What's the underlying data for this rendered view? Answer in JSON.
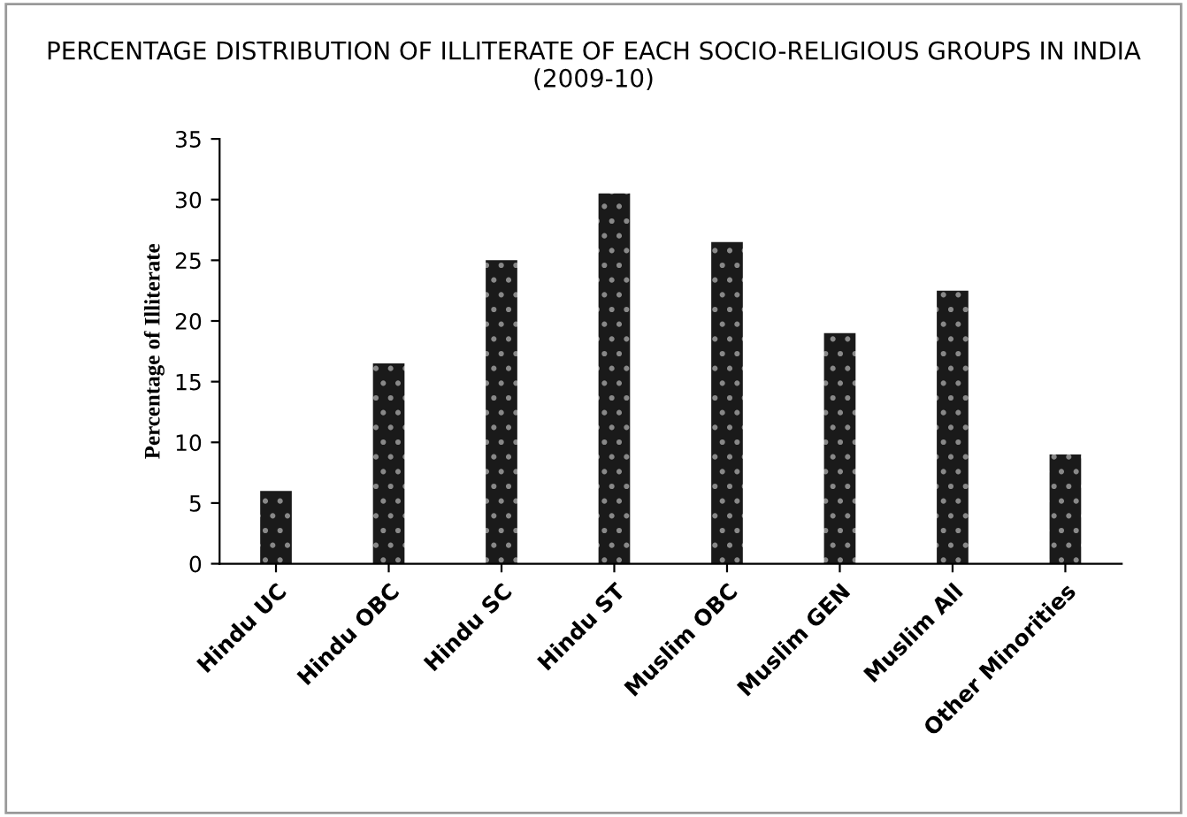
{
  "chart_data": {
    "type": "bar",
    "title": "PERCENTAGE DISTRIBUTION OF ILLITERATE OF EACH SOCIO-RELIGIOUS GROUPS IN INDIA (2009-10)",
    "ylabel": "Percentage of Illiterate",
    "categories": [
      "Hindu UC",
      "Hindu OBC",
      "Hindu SC",
      "Hindu ST",
      "Muslim OBC",
      "Muslim GEN",
      "Muslim All",
      "Other Minorities"
    ],
    "values": [
      6,
      16.5,
      25,
      30.5,
      26.5,
      19,
      22.5,
      9
    ],
    "color": "#1a1a1a",
    "ylim": [
      0,
      35
    ],
    "yticks": [
      0,
      5,
      10,
      15,
      20,
      25,
      30,
      35
    ],
    "grid": false
  }
}
